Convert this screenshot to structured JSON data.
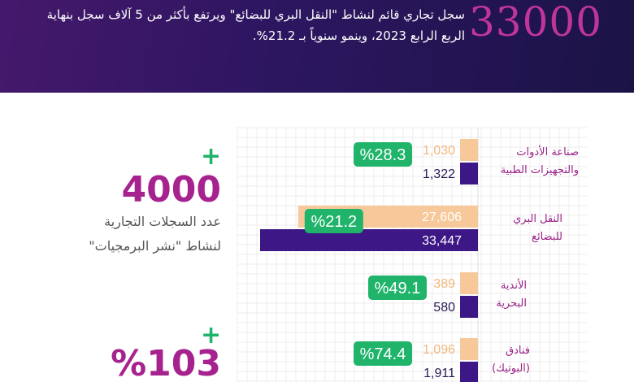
{
  "header": {
    "big_number": "33000",
    "text": "سجل تجاري قائم لنشاط \"النقل البري للبضائع\" ويرتفع بأكثر من 5 آلاف سجل بنهاية الربع الرابع 2023، وينمو سنوياً بـ 21.2%."
  },
  "kpis": [
    {
      "plus": "+",
      "value": "4000",
      "caption_line1": "عدد السجلات التجارية",
      "caption_line2": "لنشاط \"نشر البرمجيات\""
    },
    {
      "plus": "+",
      "value": "%103",
      "caption_line1": "",
      "caption_line2": ""
    }
  ],
  "colors": {
    "previous": "#f7c99a",
    "current": "#3d1786",
    "growth_badge": "#1fb46a",
    "category_text": "#9b2087",
    "accent_number": "#a6228f"
  },
  "chart_data": {
    "type": "bar",
    "orientation": "horizontal",
    "categories": [
      "صناعة الأدوات والتجهيزات الطبية",
      "النقل البري للبضائع",
      "الأندية البحرية",
      "فنادق (البوتيك)"
    ],
    "category_lines": [
      [
        "صناعة الأدوات",
        "والتجهيزات الطبية"
      ],
      [
        "النقل البري",
        "للبضائع"
      ],
      [
        "الأندية",
        "البحرية"
      ],
      [
        "فنادق",
        "(البوتيك)"
      ]
    ],
    "series": [
      {
        "values": [
          1030,
          27606,
          389,
          1096
        ],
        "labels": [
          "1,030",
          "27,606",
          "389",
          "1,096"
        ]
      },
      {
        "values": [
          1322,
          33447,
          580,
          1911
        ],
        "labels": [
          "1,322",
          "33,447",
          "580",
          "1,911"
        ]
      }
    ],
    "growth_labels": [
      "%28.3",
      "%21.2",
      "%49.1",
      "%74.4"
    ],
    "grid": true
  }
}
